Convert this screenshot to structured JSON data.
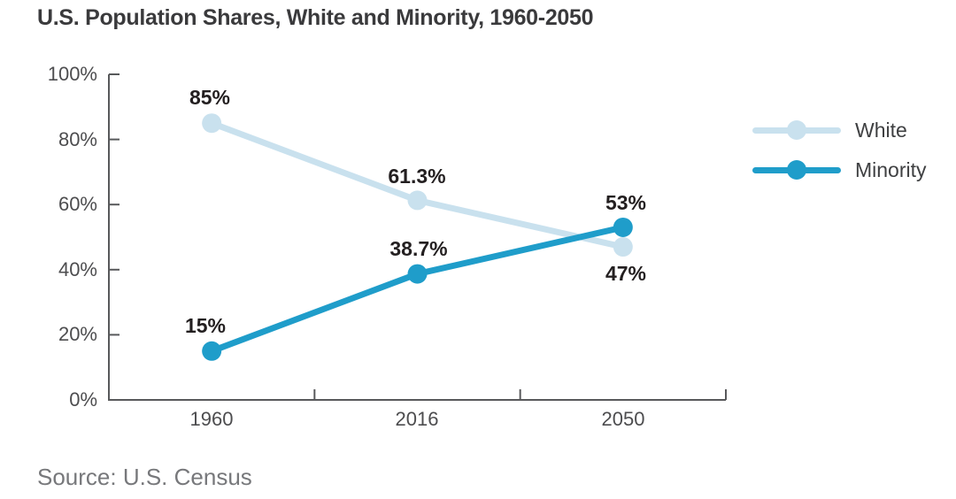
{
  "title": "U.S. Population Shares, White and Minority, 1960-2050",
  "source_note": "Source: U.S. Census",
  "colors": {
    "white_series": "#c9e1ee",
    "minority_series": "#1f9dca",
    "title_text": "#3a3a3c",
    "axis_line": "#58595b",
    "axis_tick_text": "#4d4d4f",
    "data_label_text": "#231f20",
    "legend_text": "#3f4042",
    "source_text": "#77787b"
  },
  "chart_data": {
    "type": "line",
    "title": "U.S. Population Shares, White and Minority, 1960-2050",
    "categories": [
      "1960",
      "2016",
      "2050"
    ],
    "series": [
      {
        "name": "White",
        "color": "#c9e1ee",
        "values": [
          85,
          61.3,
          47
        ],
        "point_labels": [
          "85%",
          "61.3%",
          "47%"
        ]
      },
      {
        "name": "Minority",
        "color": "#1f9dca",
        "values": [
          15,
          38.7,
          53
        ],
        "point_labels": [
          "15%",
          "38.7%",
          "53%"
        ]
      }
    ],
    "ylim": [
      0,
      100
    ],
    "yticks": [
      "0%",
      "20%",
      "40%",
      "60%",
      "80%",
      "100%"
    ],
    "xlabel": "",
    "ylabel": "",
    "grid": false,
    "legend_position": "right",
    "source": "Source: U.S. Census"
  }
}
